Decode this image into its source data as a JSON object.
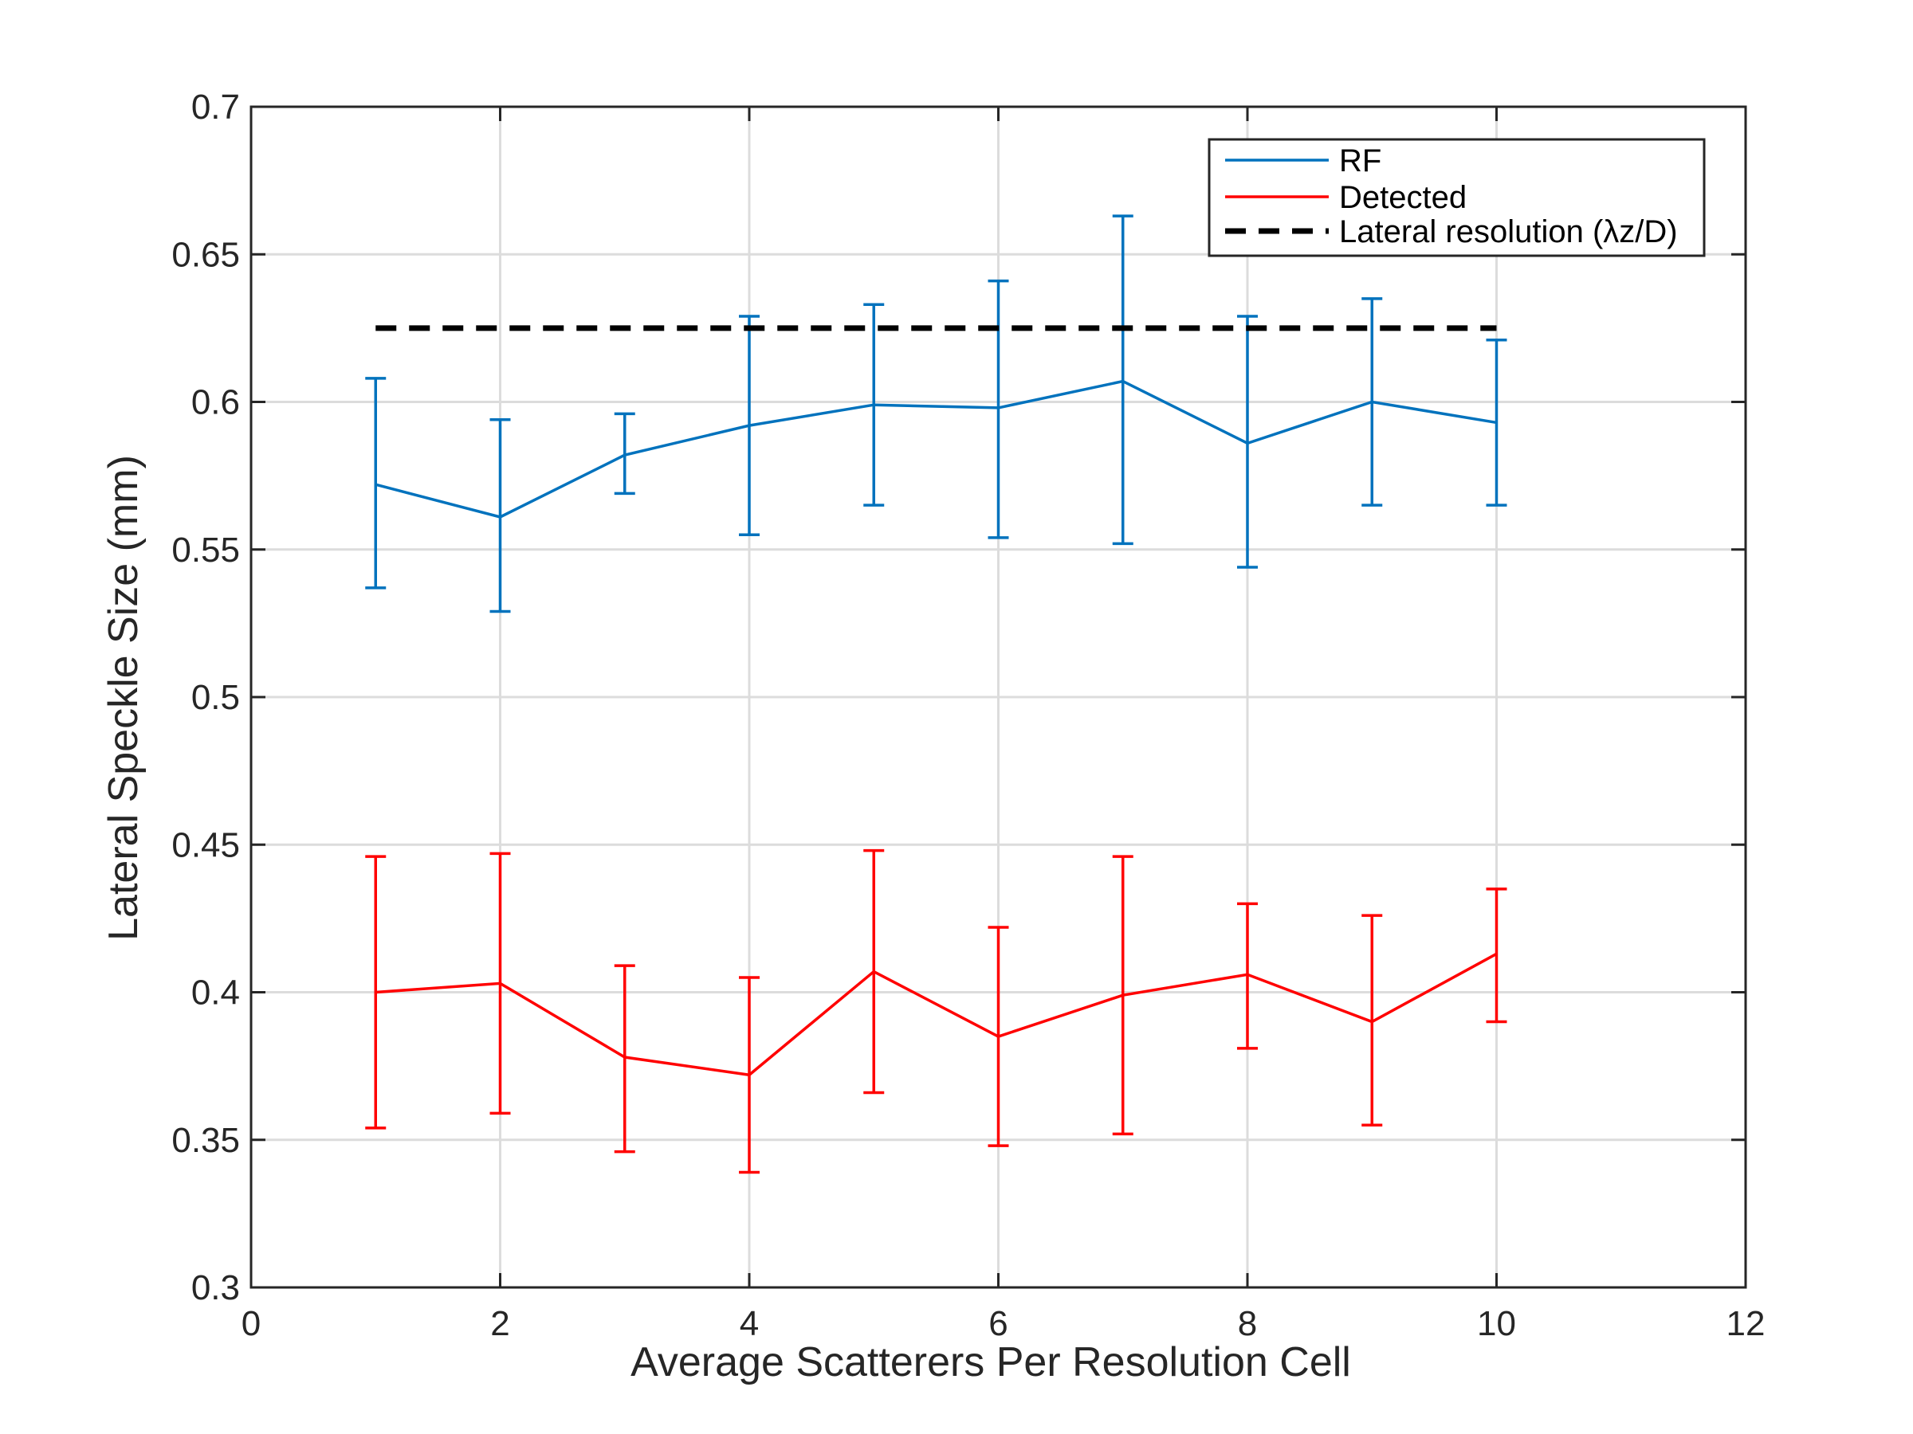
{
  "chart_data": {
    "type": "line",
    "xlabel": "Average Scatterers Per Resolution Cell",
    "ylabel": "Lateral Speckle Size (mm)",
    "xlim": [
      0,
      12
    ],
    "ylim": [
      0.3,
      0.7
    ],
    "xticks": [
      0,
      2,
      4,
      6,
      8,
      10,
      12
    ],
    "yticks": [
      0.3,
      0.35,
      0.4,
      0.45,
      0.5,
      0.55,
      0.6,
      0.65,
      0.7
    ],
    "xtick_labels": [
      "0",
      "2",
      "4",
      "6",
      "8",
      "10",
      "12"
    ],
    "ytick_labels": [
      "0.3",
      "0.35",
      "0.4",
      "0.45",
      "0.5",
      "0.55",
      "0.6",
      "0.65",
      "0.7"
    ],
    "grid": true,
    "legend_position": "top-right",
    "x": [
      1,
      2,
      3,
      4,
      5,
      6,
      7,
      8,
      9,
      10
    ],
    "series": [
      {
        "name": "RF",
        "color": "#0072BD",
        "style": "solid",
        "values": [
          0.572,
          0.561,
          0.582,
          0.592,
          0.599,
          0.598,
          0.607,
          0.586,
          0.6,
          0.593
        ],
        "err_low": [
          0.537,
          0.529,
          0.569,
          0.555,
          0.565,
          0.554,
          0.552,
          0.544,
          0.565,
          0.565
        ],
        "err_high": [
          0.608,
          0.594,
          0.596,
          0.629,
          0.633,
          0.641,
          0.663,
          0.629,
          0.635,
          0.621
        ]
      },
      {
        "name": "Detected",
        "color": "#FF0000",
        "style": "solid",
        "values": [
          0.4,
          0.403,
          0.378,
          0.372,
          0.407,
          0.385,
          0.399,
          0.406,
          0.39,
          0.413
        ],
        "err_low": [
          0.354,
          0.359,
          0.346,
          0.339,
          0.366,
          0.348,
          0.352,
          0.381,
          0.355,
          0.39
        ],
        "err_high": [
          0.446,
          0.447,
          0.409,
          0.405,
          0.448,
          0.422,
          0.446,
          0.43,
          0.426,
          0.435
        ]
      },
      {
        "name": "Lateral resolution (λz/D)",
        "color": "#000000",
        "style": "dashed",
        "x": [
          1,
          10
        ],
        "values": [
          0.625,
          0.625
        ]
      }
    ]
  }
}
